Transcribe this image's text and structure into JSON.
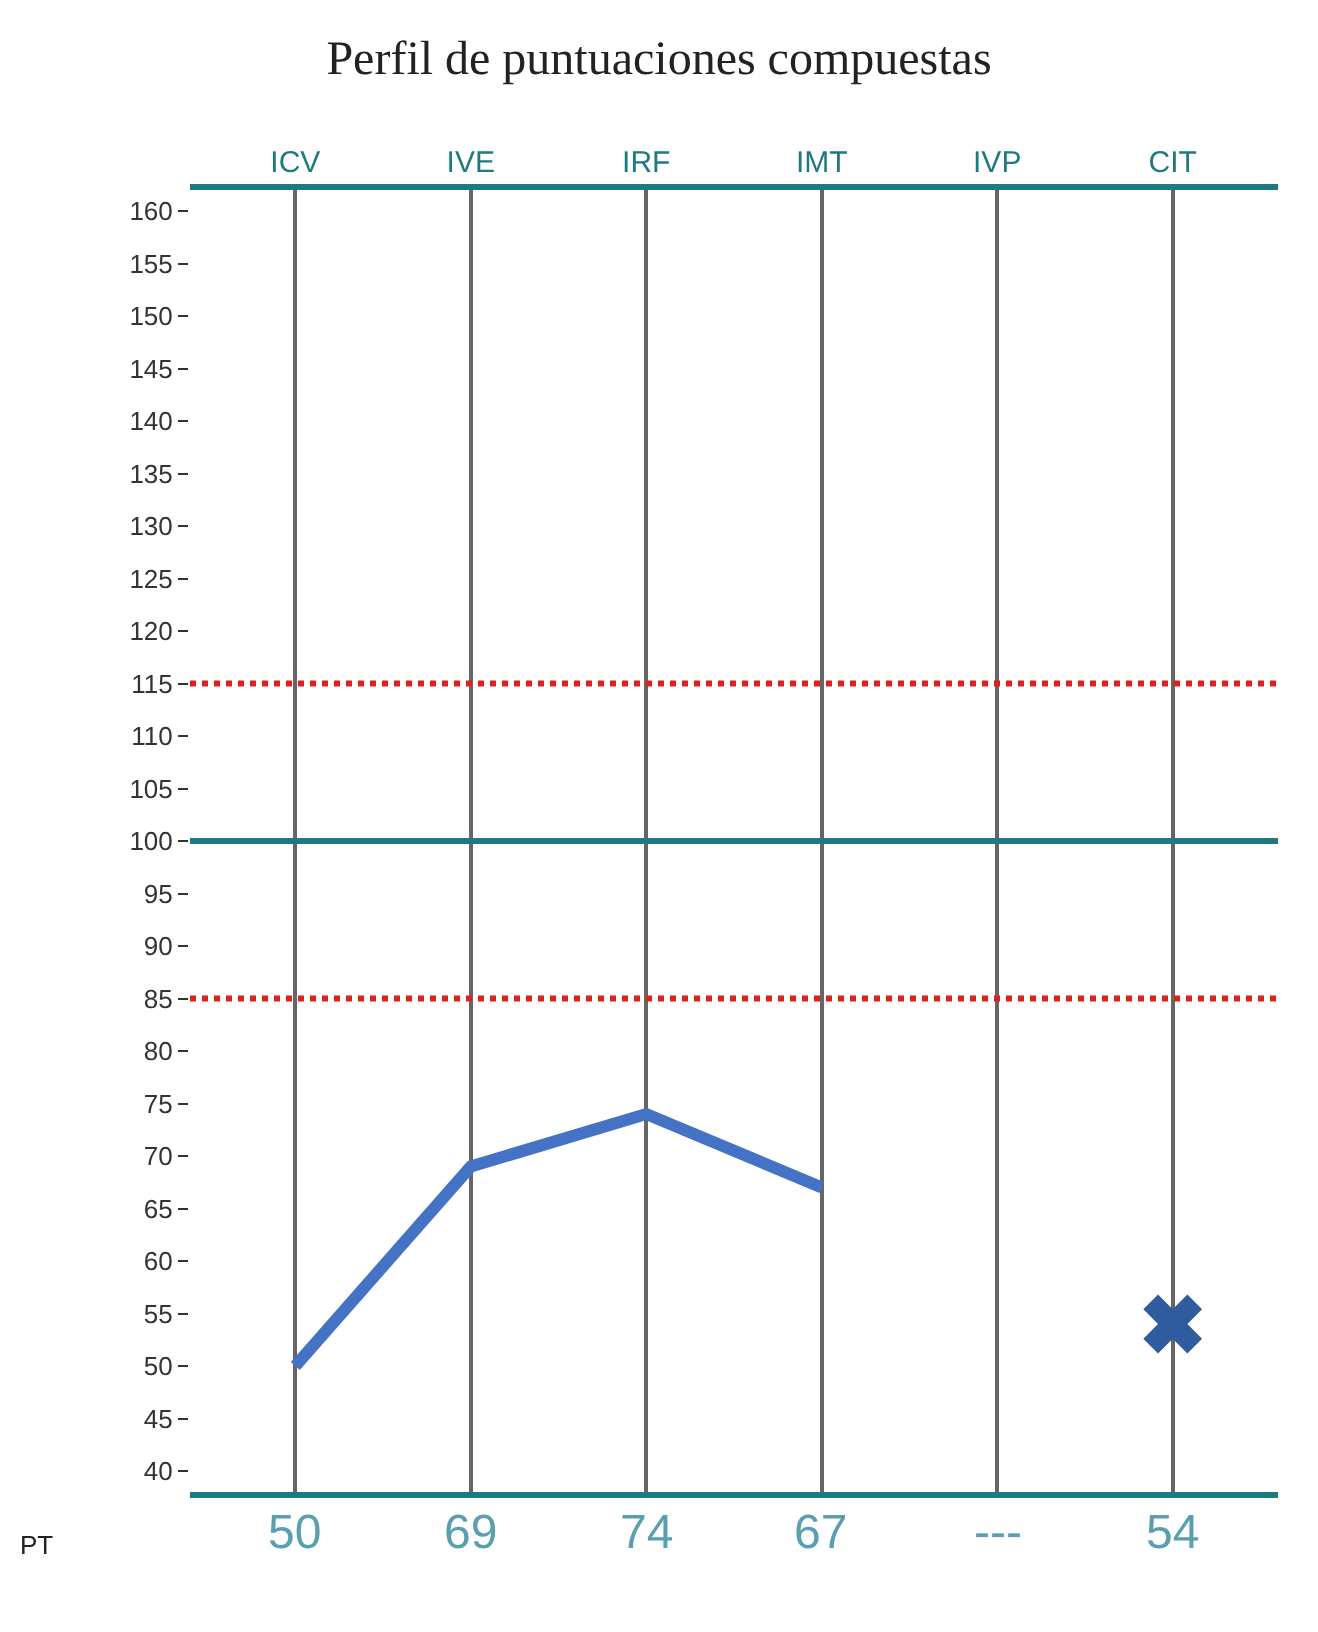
{
  "chart_data": {
    "type": "line",
    "title": "Perfil de puntuaciones compuestas",
    "categories": [
      "ICV",
      "IVE",
      "IRF",
      "IMT",
      "IVP",
      "CIT"
    ],
    "series": [
      {
        "color": "#4472c4",
        "marker": "none",
        "values": [
          50,
          69,
          74,
          67,
          null,
          null
        ],
        "value_labels": [
          "50",
          "69",
          "74",
          "67",
          "---",
          null
        ]
      },
      {
        "type": "scatter",
        "color": "#2f5c9e",
        "marker": "cross",
        "values": [
          null,
          null,
          null,
          null,
          null,
          54
        ],
        "value_labels": [
          null,
          null,
          null,
          null,
          null,
          "54"
        ]
      }
    ],
    "ylim": [
      38,
      162
    ],
    "yticks": [
      40,
      45,
      50,
      55,
      60,
      65,
      70,
      75,
      80,
      85,
      90,
      95,
      100,
      105,
      110,
      115,
      120,
      125,
      130,
      135,
      140,
      145,
      150,
      155,
      160
    ],
    "grid": "x",
    "ref_lines": [
      {
        "axis": "y",
        "value": 115,
        "color": "#e0201c",
        "line_style": "dotted"
      },
      {
        "axis": "y",
        "value": 85,
        "color": "#e0201c",
        "line_style": "dotted"
      },
      {
        "axis": "y",
        "value": 100,
        "color": "#1d7a80",
        "line_style": "solid"
      }
    ],
    "annotations": [
      "PT"
    ]
  }
}
